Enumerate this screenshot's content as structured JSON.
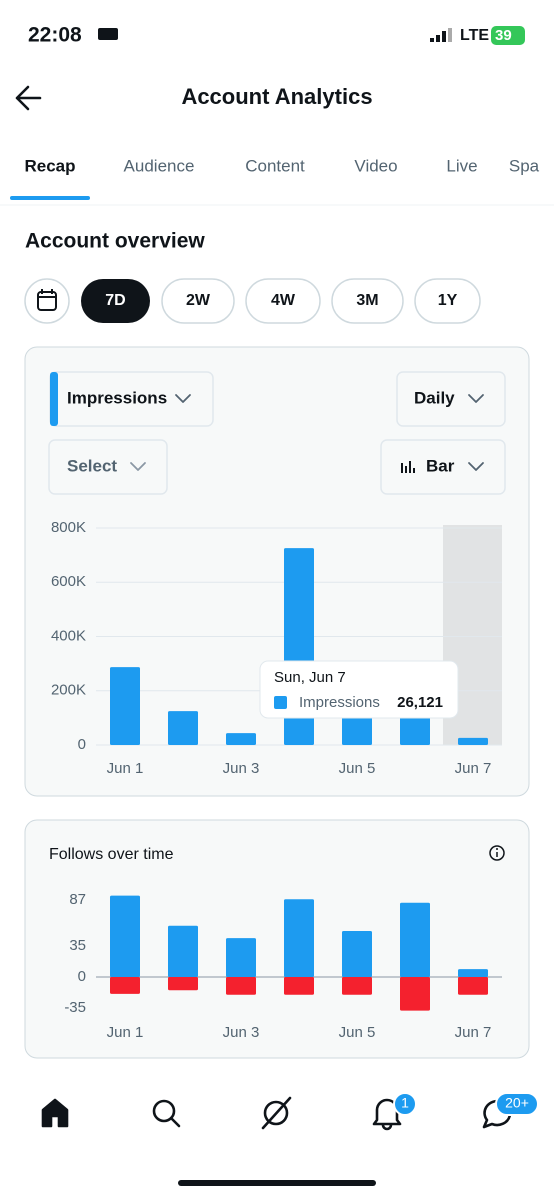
{
  "status_bar": {
    "time": "22:08",
    "network": "LTE",
    "battery": "39"
  },
  "header": {
    "title": "Account Analytics"
  },
  "tabs": [
    "Recap",
    "Audience",
    "Content",
    "Video",
    "Live",
    "Spa"
  ],
  "section_title": "Account overview",
  "ranges": [
    "7D",
    "2W",
    "4W",
    "3M",
    "1Y"
  ],
  "controls": {
    "metric": "Impressions",
    "interval": "Daily",
    "compare": "Select",
    "chart_kind": "Bar"
  },
  "chart_data": [
    {
      "type": "bar",
      "categories": [
        "Jun 1",
        null,
        "Jun 3",
        null,
        "Jun 5",
        null,
        "Jun 7"
      ],
      "series": [
        {
          "name": "Impressions",
          "color": "#1d9bf0",
          "values": [
            287000,
            125000,
            44000,
            726000,
            150000,
            120000,
            26121
          ],
          "value_labels": [
            null,
            null,
            null,
            null,
            null,
            null,
            "26,121"
          ]
        }
      ],
      "tooltip_title": "Sun, Jun 7",
      "ylim": [
        0,
        800000
      ],
      "yticks": [
        0,
        {
          "value": 200000,
          "label": "200K"
        },
        {
          "value": 400000,
          "label": "400K"
        },
        {
          "value": 600000,
          "label": "600K"
        },
        {
          "value": 800000,
          "label": "800K"
        }
      ],
      "grid": true
    },
    {
      "type": "bar",
      "title": "Follows over time",
      "categories": [
        "Jun 1",
        null,
        "Jun 3",
        null,
        "Jun 5",
        null,
        "Jun 7"
      ],
      "series": [
        {
          "color": "#1d9bf0",
          "values": [
            92,
            58,
            44,
            88,
            52,
            84,
            9
          ]
        },
        {
          "color": "#f4212e",
          "values": [
            -19,
            -15,
            -20,
            -20,
            -20,
            -38,
            -20
          ]
        }
      ],
      "ylim": [
        -48,
        95
      ],
      "yticks": [
        -35,
        0,
        35,
        87
      ],
      "grid": false
    }
  ],
  "notifications": {
    "alerts": "1",
    "messages": "20+"
  }
}
